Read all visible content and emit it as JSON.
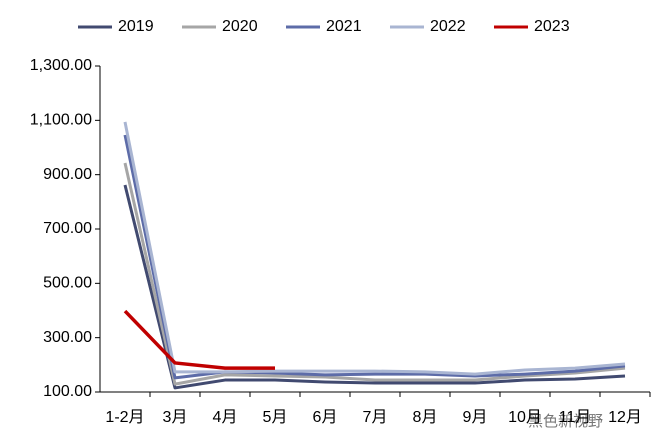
{
  "chart_data": {
    "type": "line",
    "categories": [
      "1-2月",
      "3月",
      "4月",
      "5月",
      "6月",
      "7月",
      "8月",
      "9月",
      "10月",
      "11月",
      "12月"
    ],
    "series": [
      {
        "name": "2019",
        "color": "#414a70",
        "values": [
          862,
          115,
          144,
          144,
          137,
          133,
          133,
          133,
          144,
          148,
          159
        ]
      },
      {
        "name": "2020",
        "color": "#a6a6a6",
        "values": [
          943,
          129,
          163,
          159,
          155,
          144,
          144,
          144,
          159,
          170,
          188
        ]
      },
      {
        "name": "2021",
        "color": "#5d6ca8",
        "values": [
          1046,
          152,
          174,
          170,
          163,
          166,
          166,
          159,
          166,
          177,
          196
        ]
      },
      {
        "name": "2022",
        "color": "#a9b5d2",
        "values": [
          1094,
          174,
          174,
          177,
          177,
          177,
          174,
          166,
          181,
          188,
          203
        ]
      },
      {
        "name": "2023",
        "color": "#c00000",
        "values": [
          398,
          207,
          188,
          188,
          null,
          null,
          null,
          null,
          null,
          null,
          null
        ]
      }
    ],
    "ylim": [
      100,
      1300
    ],
    "yticks": [
      {
        "value": 100,
        "label": "100.00"
      },
      {
        "value": 300,
        "label": "300.00"
      },
      {
        "value": 500,
        "label": "500.00"
      },
      {
        "value": 700,
        "label": "700.00"
      },
      {
        "value": 900,
        "label": "900.00"
      },
      {
        "value": 1100,
        "label": "1,100.00"
      },
      {
        "value": 1300,
        "label": "1,300.00"
      }
    ],
    "legend": "top",
    "watermark": "黑色新视野"
  }
}
